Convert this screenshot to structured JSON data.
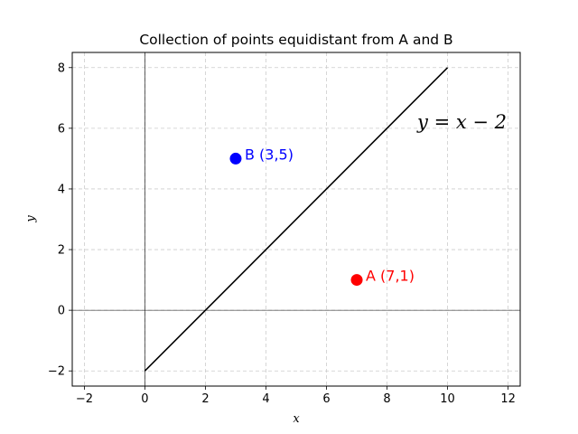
{
  "chart_data": {
    "type": "line",
    "title": "Collection of points equidistant from A and B",
    "xlabel": "x",
    "ylabel": "y",
    "xlim": [
      -2.4,
      12.4
    ],
    "ylim": [
      -2.5,
      8.5
    ],
    "x_ticks": [
      -2,
      0,
      2,
      4,
      6,
      8,
      10,
      12
    ],
    "x_tick_labels": [
      "−2",
      "0",
      "2",
      "4",
      "6",
      "8",
      "10",
      "12"
    ],
    "y_ticks": [
      -2,
      0,
      2,
      4,
      6,
      8
    ],
    "y_tick_labels": [
      "−2",
      "0",
      "2",
      "4",
      "6",
      "8"
    ],
    "grid": true,
    "axis_lines": {
      "x_zero": true,
      "y_zero": true
    },
    "line": {
      "label": "y = x − 2",
      "x": [
        0,
        10
      ],
      "y": [
        -2,
        8
      ],
      "color": "#000000"
    },
    "points": [
      {
        "id": "A",
        "label": "A (7,1)",
        "x": 7,
        "y": 1,
        "color": "#ff0000"
      },
      {
        "id": "B",
        "label": "B (3,5)",
        "x": 3,
        "y": 5,
        "color": "#0000ff"
      }
    ],
    "annotations": [
      {
        "text": "y = x − 2",
        "x": 9,
        "y": 6
      }
    ]
  }
}
